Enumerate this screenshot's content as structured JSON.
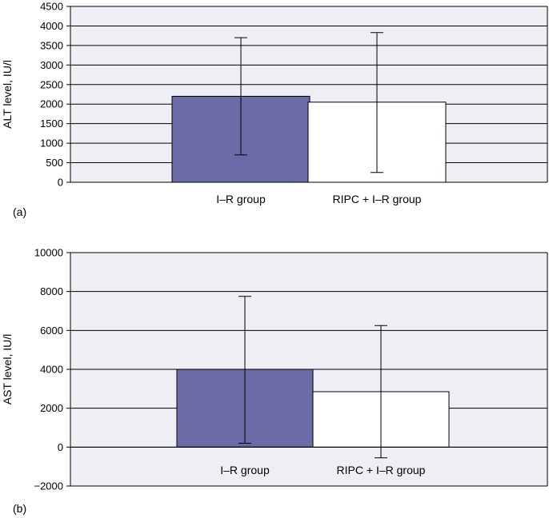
{
  "colors": {
    "plot_background": "#eeeef5",
    "grid": "#000000",
    "bar_ir": "#6b6ba8",
    "bar_ripc": "#ffffff",
    "bar_outline": "#000000"
  },
  "chart_data": [
    {
      "type": "bar",
      "panel_label": "(a)",
      "categories": [
        "I–R group",
        "RIPC + I–R group"
      ],
      "values": [
        2200,
        2050
      ],
      "error_bars": [
        {
          "low": 700,
          "high": 3700
        },
        {
          "low": 250,
          "high": 3830
        }
      ],
      "bar_colors": [
        "#6b6ba8",
        "#ffffff"
      ],
      "xlabel": "",
      "ylabel": "ALT level, IU/l",
      "ylim": [
        0,
        4500
      ],
      "yticks": [
        0,
        500,
        1000,
        1500,
        2000,
        2500,
        3000,
        3500,
        4000,
        4500
      ],
      "ytick_labels": [
        "0",
        "500",
        "1000",
        "1500",
        "2000",
        "2500",
        "3000",
        "3500",
        "4000",
        "4500"
      ],
      "grid": true,
      "legend": "none"
    },
    {
      "type": "bar",
      "panel_label": "(b)",
      "categories": [
        "I–R group",
        "RIPC + I–R group"
      ],
      "values": [
        4000,
        2850
      ],
      "error_bars": [
        {
          "low": 200,
          "high": 7750
        },
        {
          "low": -550,
          "high": 6250
        }
      ],
      "bar_colors": [
        "#6b6ba8",
        "#ffffff"
      ],
      "xlabel": "",
      "ylabel": "AST level, IU/l",
      "ylim": [
        -2000,
        10000
      ],
      "yticks": [
        -2000,
        0,
        2000,
        4000,
        6000,
        8000,
        10000
      ],
      "ytick_labels": [
        "−2000",
        "0",
        "2000",
        "4000",
        "6000",
        "8000",
        "10000"
      ],
      "grid": true,
      "legend": "none"
    }
  ]
}
